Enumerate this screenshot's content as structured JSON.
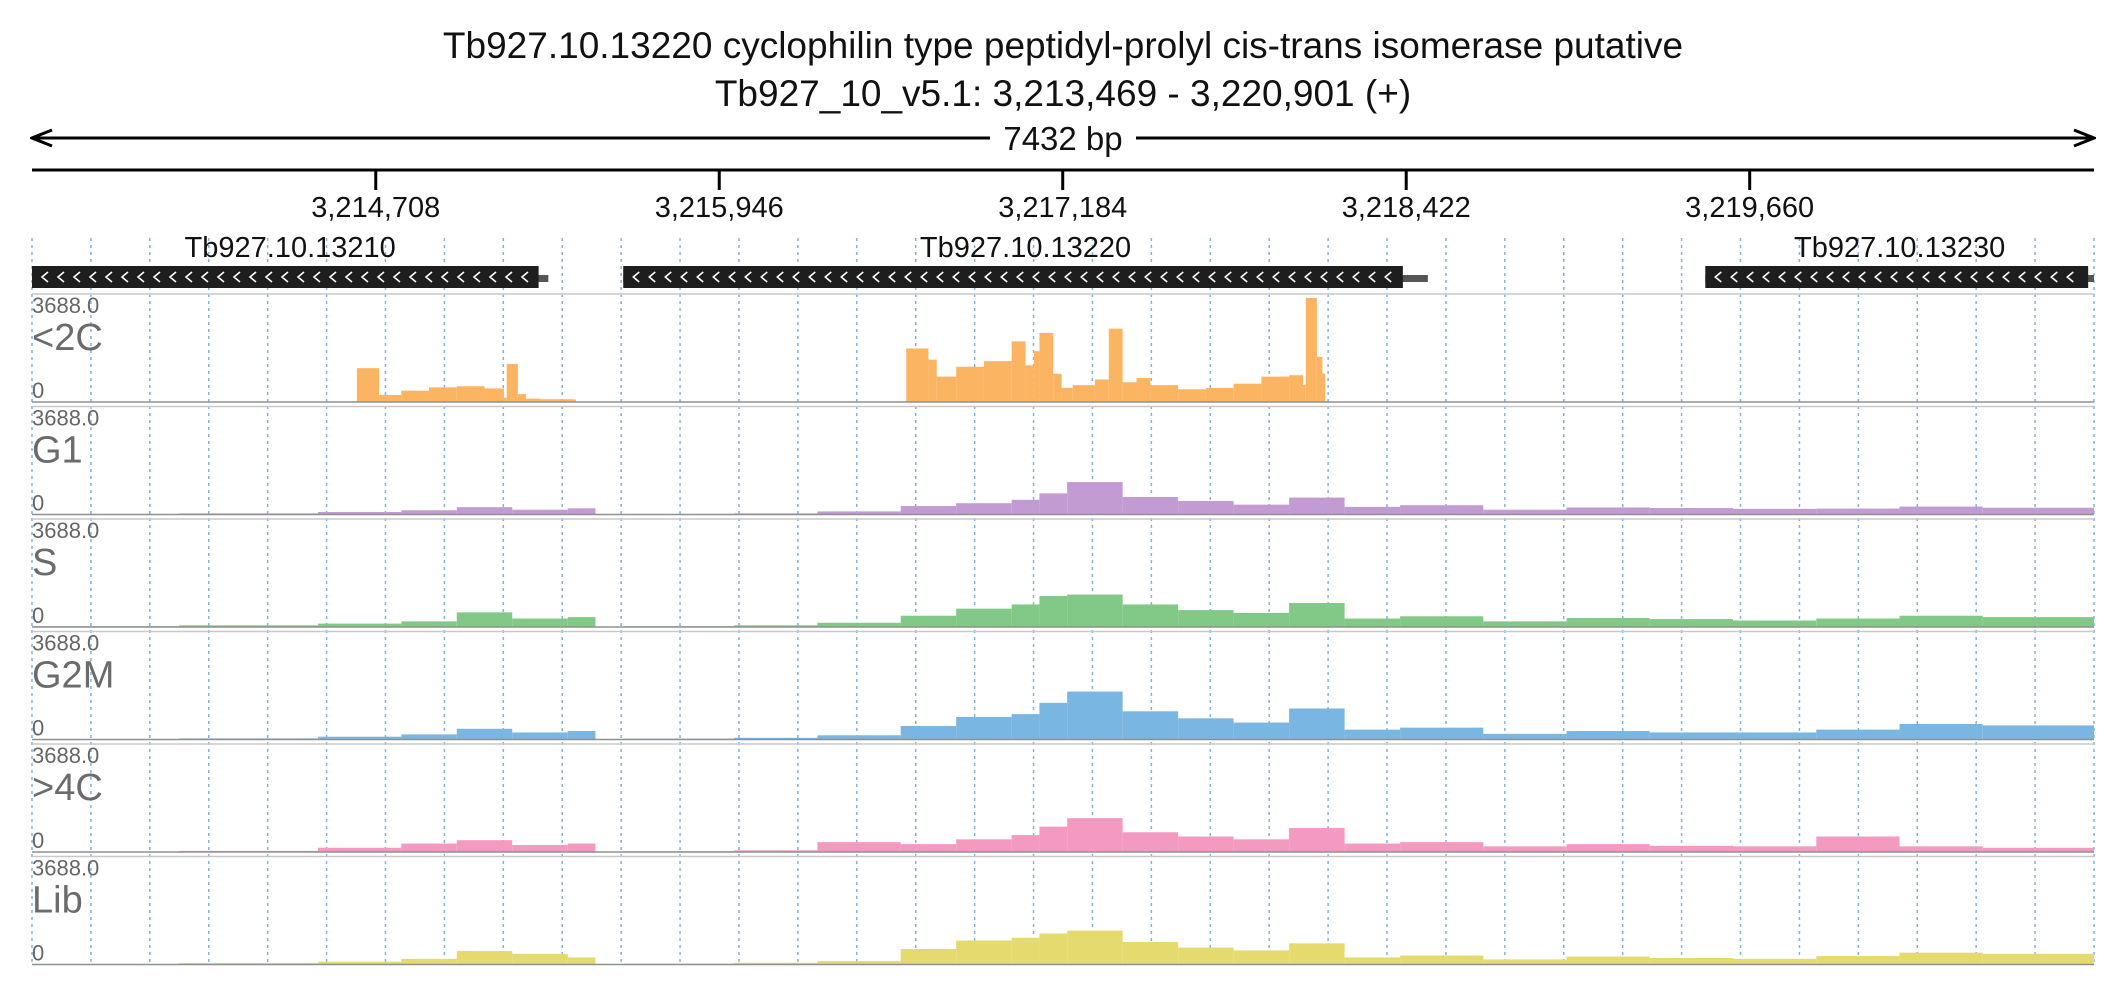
{
  "header": {
    "title": "Tb927.10.13220  cyclophilin type peptidyl-prolyl cis-trans isomerase  putative",
    "location": "Tb927_10_v5.1: 3,213,469 - 3,220,901 (+)",
    "span_label": "7432 bp"
  },
  "chart_data": {
    "type": "area",
    "title": "Tb927.10.13220  cyclophilin type peptidyl-prolyl cis-trans isomerase  putative",
    "subtitle": "Tb927_10_v5.1: 3,213,469 - 3,220,901 (+)",
    "xlim": [
      3213469,
      3220901
    ],
    "x_ticks": [
      3214708,
      3215946,
      3217184,
      3218422,
      3219660
    ],
    "x_tick_labels": [
      "3,214,708",
      "3,215,946",
      "3,217,184",
      "3,218,422",
      "3,219,660"
    ],
    "grid": true,
    "genes": [
      {
        "name": "Tb927.10.13210",
        "start": 3213469,
        "end": 3215330,
        "cds_end": 3215295,
        "strand": "-"
      },
      {
        "name": "Tb927.10.13220",
        "start": 3215600,
        "end": 3218500,
        "cds_end": 3218410,
        "strand": "-"
      },
      {
        "name": "Tb927.10.13230",
        "start": 3219500,
        "end": 3220901,
        "cds_end": 3220880,
        "strand": "-"
      }
    ],
    "tracks": [
      {
        "name": "<2C",
        "ymax": "3688.0",
        "ymin": "0",
        "color": "#fbb462",
        "x": [
          3214640,
          3214720,
          3214800,
          3214900,
          3215000,
          3215100,
          3215170,
          3215180,
          3215220,
          3215250,
          3215300,
          3215420,
          3215430,
          3216620,
          3216700,
          3216730,
          3216800,
          3216900,
          3217000,
          3217050,
          3217080,
          3217100,
          3217150,
          3217180,
          3217220,
          3217300,
          3217350,
          3217400,
          3217450,
          3217500,
          3217600,
          3217700,
          3217800,
          3217900,
          3218000,
          3218050,
          3218060,
          3218100,
          3218120,
          3218130
        ],
        "y": [
          1200,
          250,
          400,
          520,
          560,
          480,
          150,
          1350,
          280,
          120,
          100,
          90,
          0,
          1900,
          1500,
          900,
          1250,
          1450,
          2150,
          1300,
          1800,
          2450,
          1000,
          500,
          600,
          800,
          2600,
          700,
          850,
          600,
          450,
          500,
          650,
          900,
          950,
          600,
          3688,
          1600,
          1000,
          0
        ]
      },
      {
        "name": "G1",
        "ymax": "3688.0",
        "ymin": "0",
        "color": "#c39bd3",
        "x": [
          3213469,
          3214000,
          3214500,
          3214800,
          3215000,
          3215200,
          3215400,
          3215500,
          3215600,
          3216000,
          3216300,
          3216600,
          3216800,
          3217000,
          3217100,
          3217200,
          3217400,
          3217600,
          3217800,
          3218000,
          3218200,
          3218400,
          3218700,
          3219000,
          3219300,
          3219600,
          3219900,
          3220200,
          3220500,
          3220901
        ],
        "y": [
          20,
          40,
          90,
          150,
          260,
          170,
          220,
          0,
          20,
          40,
          110,
          300,
          400,
          520,
          750,
          1150,
          620,
          480,
          350,
          600,
          270,
          330,
          170,
          250,
          230,
          200,
          210,
          280,
          240,
          260
        ]
      },
      {
        "name": "S",
        "ymax": "3688.0",
        "ymin": "0",
        "color": "#82c987",
        "x": [
          3213469,
          3214000,
          3214500,
          3214800,
          3215000,
          3215200,
          3215400,
          3215500,
          3215600,
          3216000,
          3216300,
          3216600,
          3216800,
          3217000,
          3217100,
          3217200,
          3217400,
          3217600,
          3217800,
          3218000,
          3218200,
          3218400,
          3218700,
          3219000,
          3219300,
          3219600,
          3219900,
          3220200,
          3220500,
          3220901
        ],
        "y": [
          30,
          60,
          120,
          200,
          520,
          300,
          350,
          0,
          30,
          60,
          150,
          400,
          650,
          800,
          1100,
          1150,
          800,
          600,
          500,
          850,
          300,
          380,
          200,
          320,
          280,
          230,
          300,
          400,
          350,
          420
        ]
      },
      {
        "name": "G2M",
        "ymax": "3688.0",
        "ymin": "0",
        "color": "#7ab6e2",
        "x": [
          3213469,
          3214000,
          3214500,
          3214800,
          3215000,
          3215200,
          3215400,
          3215500,
          3215600,
          3216000,
          3216300,
          3216600,
          3216800,
          3217000,
          3217100,
          3217200,
          3217400,
          3217600,
          3217800,
          3218000,
          3218200,
          3218400,
          3218700,
          3219000,
          3219300,
          3219600,
          3219900,
          3220200,
          3220500,
          3220901
        ],
        "y": [
          10,
          40,
          100,
          180,
          380,
          250,
          300,
          0,
          30,
          60,
          150,
          480,
          800,
          900,
          1300,
          1700,
          1000,
          750,
          600,
          1100,
          350,
          420,
          200,
          300,
          250,
          250,
          350,
          550,
          500,
          480
        ]
      },
      {
        "name": ">4C",
        "ymax": "3688.0",
        "ymin": "0",
        "color": "#f49ac1",
        "x": [
          3213469,
          3214000,
          3214500,
          3214800,
          3215000,
          3215200,
          3215400,
          3215500,
          3215600,
          3216000,
          3216300,
          3216600,
          3216800,
          3217000,
          3217100,
          3217200,
          3217400,
          3217600,
          3217800,
          3218000,
          3218200,
          3218400,
          3218700,
          3219000,
          3219300,
          3219600,
          3219900,
          3220200,
          3220500,
          3220901
        ],
        "y": [
          10,
          40,
          150,
          300,
          420,
          250,
          300,
          0,
          30,
          60,
          350,
          280,
          450,
          600,
          900,
          1200,
          700,
          550,
          450,
          850,
          300,
          350,
          200,
          280,
          220,
          200,
          550,
          200,
          150,
          200
        ]
      },
      {
        "name": "Lib",
        "ymax": "3688.0",
        "ymin": "0",
        "color": "#e5da6e",
        "x": [
          3213469,
          3214000,
          3214500,
          3214800,
          3215000,
          3215200,
          3215400,
          3215500,
          3215600,
          3216000,
          3216300,
          3216600,
          3216800,
          3217000,
          3217100,
          3217200,
          3217400,
          3217600,
          3217800,
          3218000,
          3218200,
          3218400,
          3218700,
          3219000,
          3219300,
          3219600,
          3219900,
          3220200,
          3220500,
          3220901
        ],
        "y": [
          20,
          50,
          100,
          200,
          480,
          380,
          250,
          0,
          30,
          60,
          120,
          550,
          850,
          950,
          1100,
          1200,
          800,
          600,
          500,
          750,
          250,
          320,
          180,
          280,
          230,
          200,
          300,
          420,
          380,
          320
        ]
      }
    ]
  }
}
